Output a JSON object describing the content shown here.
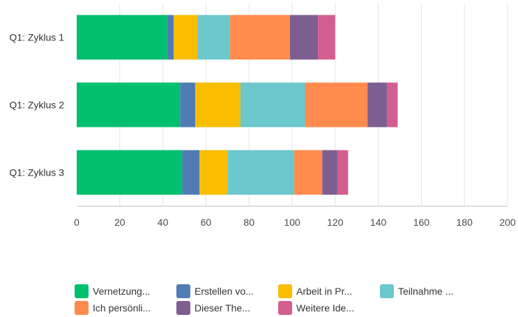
{
  "chart_data": {
    "type": "bar",
    "orientation": "horizontal",
    "stacked": true,
    "title": "",
    "xlabel": "",
    "ylabel": "",
    "xlim": [
      0,
      200
    ],
    "x_ticks": [
      0,
      20,
      40,
      60,
      80,
      100,
      120,
      140,
      160,
      180,
      200
    ],
    "grid": true,
    "legend_position": "bottom",
    "categories": [
      "Q1: Zyklus 1",
      "Q1: Zyklus 2",
      "Q1: Zyklus 3"
    ],
    "series": [
      {
        "name": "Vernetzung...",
        "color": "#00bf6f",
        "values": [
          42,
          48,
          49
        ]
      },
      {
        "name": "Erstellen vo...",
        "color": "#507cb6",
        "values": [
          3,
          7,
          8
        ]
      },
      {
        "name": "Arbeit in Pr...",
        "color": "#f9be00",
        "values": [
          11,
          21,
          13
        ]
      },
      {
        "name": "Teilnahme ...",
        "color": "#6bc8cd",
        "values": [
          15,
          30,
          31
        ]
      },
      {
        "name": "Ich persönli...",
        "color": "#ff8b4f",
        "values": [
          28,
          29,
          13
        ]
      },
      {
        "name": "Dieser The...",
        "color": "#7d5e90",
        "values": [
          13,
          9,
          7
        ]
      },
      {
        "name": "Weitere Ide...",
        "color": "#d25f90",
        "values": [
          8,
          5,
          5
        ]
      }
    ]
  }
}
